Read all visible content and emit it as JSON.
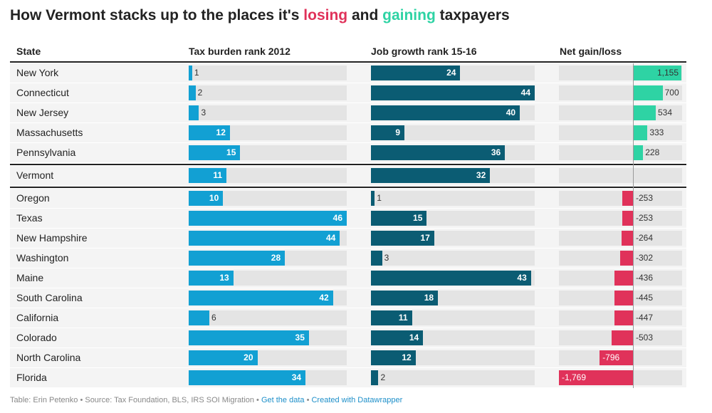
{
  "title": {
    "prefix": "How Vermont stacks up to the places it's ",
    "losing": "losing",
    "middle": " and ",
    "gaining": "gaining",
    "suffix": " taxpayers"
  },
  "headers": {
    "state": "State",
    "tax": "Tax burden rank 2012",
    "job": "Job growth rank 15-16",
    "net": "Net gain/loss"
  },
  "colors": {
    "tax_bar": "#12a0d3",
    "job_bar": "#0b5c73",
    "gain_bar": "#2ed3a4",
    "loss_bar": "#e0325a",
    "track": "#e4e4e4"
  },
  "chart_data": {
    "type": "table",
    "columns": [
      "State",
      "Tax burden rank 2012",
      "Job growth rank 15-16",
      "Net gain/loss"
    ],
    "tax_max": 46,
    "job_max": 44,
    "net_range": [
      -1769,
      1155
    ],
    "rows": [
      {
        "state": "New York",
        "tax": 1,
        "job": 24,
        "net": 1155,
        "net_label": "1,155"
      },
      {
        "state": "Connecticut",
        "tax": 2,
        "job": 44,
        "net": 700,
        "net_label": "700"
      },
      {
        "state": "New Jersey",
        "tax": 3,
        "job": 40,
        "net": 534,
        "net_label": "534"
      },
      {
        "state": "Massachusetts",
        "tax": 12,
        "job": 9,
        "net": 333,
        "net_label": "333"
      },
      {
        "state": "Pennsylvania",
        "tax": 15,
        "job": 36,
        "net": 228,
        "net_label": "228"
      },
      {
        "state": "Vermont",
        "tax": 11,
        "job": 32,
        "net": null,
        "net_label": ""
      },
      {
        "state": "Oregon",
        "tax": 10,
        "job": 1,
        "net": -253,
        "net_label": "-253"
      },
      {
        "state": "Texas",
        "tax": 46,
        "job": 15,
        "net": -253,
        "net_label": "-253"
      },
      {
        "state": "New Hampshire",
        "tax": 44,
        "job": 17,
        "net": -264,
        "net_label": "-264"
      },
      {
        "state": "Washington",
        "tax": 28,
        "job": 3,
        "net": -302,
        "net_label": "-302"
      },
      {
        "state": "Maine",
        "tax": 13,
        "job": 43,
        "net": -436,
        "net_label": "-436"
      },
      {
        "state": "South Carolina",
        "tax": 42,
        "job": 18,
        "net": -445,
        "net_label": "-445"
      },
      {
        "state": "California",
        "tax": 6,
        "job": 11,
        "net": -447,
        "net_label": "-447"
      },
      {
        "state": "Colorado",
        "tax": 35,
        "job": 14,
        "net": -503,
        "net_label": "-503"
      },
      {
        "state": "North Carolina",
        "tax": 20,
        "job": 12,
        "net": -796,
        "net_label": "-796"
      },
      {
        "state": "Florida",
        "tax": 34,
        "job": 2,
        "net": -1769,
        "net_label": "-1,769"
      }
    ]
  },
  "footer": {
    "credit": "Table: Erin Petenko • Source: Tax Foundation, BLS, IRS SOI Migration • ",
    "get_data": "Get the data",
    "dot": " • ",
    "created": "Created with Datawrapper"
  }
}
